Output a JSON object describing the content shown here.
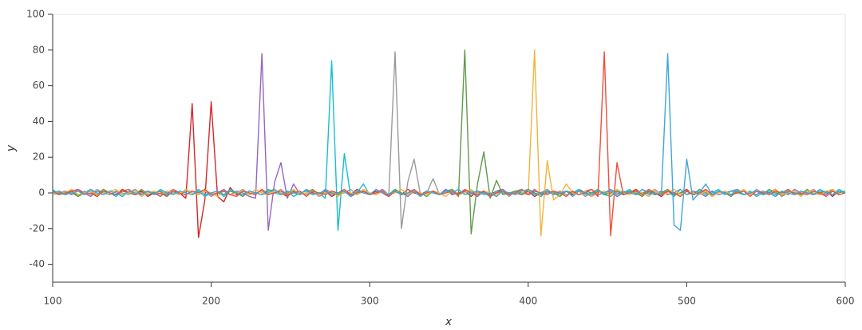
{
  "chart_data": {
    "type": "line",
    "xlabel": "x",
    "ylabel": "y",
    "xlim": [
      100,
      600
    ],
    "ylim": [
      -50,
      100
    ],
    "xticks": [
      100,
      200,
      300,
      400,
      500,
      600
    ],
    "yticks": [
      -40,
      -20,
      0,
      20,
      40,
      60,
      80,
      100
    ],
    "x": [
      100,
      104,
      108,
      112,
      116,
      120,
      124,
      128,
      132,
      136,
      140,
      144,
      148,
      152,
      156,
      160,
      164,
      168,
      172,
      176,
      180,
      184,
      188,
      192,
      196,
      200,
      204,
      208,
      212,
      216,
      220,
      224,
      228,
      232,
      236,
      240,
      244,
      248,
      252,
      256,
      260,
      264,
      268,
      272,
      276,
      280,
      284,
      288,
      292,
      296,
      300,
      304,
      308,
      312,
      316,
      320,
      324,
      328,
      332,
      336,
      340,
      344,
      348,
      352,
      356,
      360,
      364,
      368,
      372,
      376,
      380,
      384,
      388,
      392,
      396,
      400,
      404,
      408,
      412,
      416,
      420,
      424,
      428,
      432,
      436,
      440,
      444,
      448,
      452,
      456,
      460,
      464,
      468,
      472,
      476,
      480,
      484,
      488,
      492,
      496,
      500,
      504,
      508,
      512,
      516,
      520,
      524,
      528,
      532,
      536,
      540,
      544,
      548,
      552,
      556,
      560,
      564,
      568,
      572,
      576,
      580,
      584,
      588,
      592,
      596,
      600
    ],
    "series": [
      {
        "color": "#d62728",
        "values": [
          0,
          1,
          -1,
          2,
          -1,
          0,
          1,
          -2,
          1,
          0,
          -1,
          2,
          0,
          -1,
          1,
          -2,
          0,
          1,
          -1,
          2,
          0,
          -3,
          50,
          -25,
          -4,
          51,
          -2,
          -5,
          3,
          -1,
          1,
          0,
          -1,
          2,
          -1,
          1,
          0,
          -2,
          1,
          -1,
          2,
          0,
          -1,
          1,
          -2,
          0,
          1,
          -1,
          2,
          0,
          -1,
          1,
          0,
          -2,
          1,
          -1,
          2,
          0,
          -1,
          1,
          0,
          -1,
          2,
          -1,
          0,
          1,
          -2,
          1,
          0,
          -1,
          1,
          2,
          -1,
          0,
          -1,
          1,
          -2,
          0,
          2,
          -1,
          0,
          1,
          -1,
          2,
          0,
          -2,
          1,
          -1,
          0,
          1,
          -1,
          0,
          2,
          -1,
          1,
          0,
          -2,
          1,
          -1,
          0,
          2,
          -1,
          0,
          1,
          -2,
          1,
          0,
          -1,
          2,
          -1,
          0,
          1,
          -1,
          0,
          2,
          -2,
          1,
          0,
          -1,
          1,
          0,
          -1,
          1,
          -2,
          1,
          0
        ]
      },
      {
        "color": "#9467bd",
        "values": [
          -1,
          0,
          1,
          -1,
          2,
          0,
          -2,
          1,
          0,
          -1,
          1,
          -1,
          0,
          2,
          -1,
          1,
          0,
          -2,
          1,
          0,
          -1,
          2,
          0,
          -1,
          1,
          -1,
          0,
          2,
          -1,
          1,
          0,
          -2,
          -3,
          78,
          -21,
          6,
          17,
          -3,
          5,
          -1,
          0,
          1,
          -1,
          2,
          0,
          -1,
          1,
          -2,
          0,
          1,
          -1,
          0,
          2,
          -1,
          1,
          0,
          -2,
          1,
          -1,
          0,
          1,
          -1,
          2,
          0,
          -1,
          1,
          0,
          -2,
          1,
          -1,
          0,
          2,
          -1,
          1,
          0,
          -1,
          2,
          -1,
          0,
          1,
          -2,
          1,
          0,
          -1,
          1,
          2,
          -1,
          0,
          1,
          -2,
          0,
          1,
          -1,
          2,
          0,
          -1,
          1,
          -1,
          0,
          2,
          -1,
          1,
          0,
          -2,
          1,
          -1,
          0,
          1,
          2,
          -1,
          0,
          -1,
          1,
          0,
          -2,
          1,
          -1,
          2,
          0,
          -1,
          1,
          0,
          -1,
          2,
          -1,
          0
        ]
      },
      {
        "color": "#17becf",
        "values": [
          2,
          -1,
          0,
          1,
          -1,
          0,
          2,
          -1,
          1,
          0,
          -2,
          1,
          0,
          -1,
          2,
          -1,
          0,
          1,
          -1,
          0,
          1,
          0,
          -1,
          2,
          -1,
          0,
          1,
          -2,
          1,
          0,
          -1,
          1,
          0,
          -1,
          2,
          0,
          -1,
          1,
          -2,
          0,
          1,
          -1,
          0,
          -3,
          74,
          -21,
          22,
          -2,
          0,
          5,
          -1,
          0,
          1,
          -1,
          2,
          -1,
          0,
          1,
          -2,
          1,
          0,
          -1,
          1,
          2,
          -1,
          0,
          1,
          -1,
          0,
          -2,
          1,
          0,
          -1,
          1,
          2,
          -1,
          0,
          -2,
          1,
          0,
          -1,
          1,
          0,
          2,
          -1,
          0,
          1,
          -1,
          -2,
          1,
          0,
          2,
          -1,
          0,
          1,
          -1,
          0,
          1,
          -2,
          2,
          -1,
          0,
          1,
          -1,
          0,
          2,
          -1,
          1,
          0,
          -1,
          1,
          -2,
          0,
          1,
          -1,
          0,
          2,
          -1,
          1,
          0,
          -1,
          1,
          0,
          -1,
          2,
          0
        ]
      },
      {
        "color": "#9a9a9a",
        "values": [
          0,
          -1,
          1,
          0,
          -2,
          1,
          -1,
          2,
          0,
          -1,
          1,
          0,
          -1,
          2,
          -1,
          0,
          1,
          -1,
          0,
          2,
          -1,
          1,
          0,
          -1,
          1,
          -2,
          0,
          1,
          -1,
          0,
          2,
          -1,
          0,
          1,
          -1,
          0,
          2,
          -1,
          1,
          0,
          -1,
          1,
          -2,
          0,
          1,
          -1,
          0,
          2,
          -1,
          1,
          0,
          -1,
          1,
          -2,
          79,
          -20,
          6,
          19,
          -1,
          0,
          8,
          -1,
          1,
          0,
          -1,
          2,
          -1,
          0,
          1,
          -1,
          0,
          1,
          -2,
          1,
          0,
          -1,
          1,
          0,
          2,
          -1,
          1,
          -1,
          0,
          1,
          -2,
          0,
          1,
          -1,
          2,
          0,
          -1,
          0,
          1,
          -1,
          0,
          2,
          -1,
          1,
          0,
          -2,
          1,
          0,
          -1,
          2,
          -1,
          0,
          1,
          -1,
          0,
          1,
          -1,
          2,
          0,
          -1,
          1,
          -2,
          0,
          1,
          -1,
          0,
          2,
          -1,
          0,
          1,
          -1,
          0
        ]
      },
      {
        "color": "#5d9b48",
        "values": [
          1,
          0,
          -1,
          1,
          -2,
          0,
          1,
          -1,
          2,
          0,
          -1,
          1,
          0,
          -1,
          2,
          -1,
          0,
          1,
          -2,
          1,
          0,
          -1,
          1,
          0,
          2,
          -1,
          0,
          -1,
          1,
          0,
          -2,
          1,
          0,
          -1,
          1,
          2,
          -1,
          0,
          1,
          -1,
          0,
          2,
          -1,
          1,
          0,
          -1,
          1,
          -2,
          0,
          1,
          -1,
          0,
          1,
          -1,
          2,
          0,
          -1,
          1,
          0,
          -2,
          1,
          -1,
          0,
          2,
          -2,
          80,
          -23,
          5,
          23,
          -3,
          7,
          -1,
          0,
          1,
          -1,
          2,
          0,
          -1,
          1,
          0,
          -2,
          1,
          0,
          -1,
          1,
          0,
          2,
          -1,
          0,
          1,
          -1,
          1,
          0,
          -2,
          1,
          -1,
          0,
          2,
          -1,
          0,
          1,
          -1,
          2,
          0,
          -1,
          1,
          0,
          -2,
          1,
          -1,
          0,
          1,
          -1,
          2,
          0,
          -1,
          1,
          0,
          -1,
          2,
          -1,
          0,
          1,
          -1,
          0,
          1
        ]
      },
      {
        "color": "#f0b43c",
        "values": [
          -1,
          1,
          0,
          2,
          -1,
          0,
          1,
          -1,
          0,
          1,
          2,
          -1,
          0,
          1,
          -2,
          0,
          1,
          -1,
          1,
          0,
          -1,
          2,
          0,
          -1,
          1,
          0,
          -2,
          1,
          -1,
          0,
          1,
          -1,
          2,
          0,
          -1,
          1,
          0,
          -1,
          2,
          -1,
          0,
          1,
          -1,
          0,
          1,
          -2,
          1,
          0,
          -1,
          2,
          0,
          -1,
          1,
          -1,
          0,
          2,
          -1,
          1,
          0,
          -1,
          1,
          0,
          -2,
          1,
          -1,
          0,
          2,
          -1,
          1,
          0,
          -1,
          1,
          0,
          -1,
          2,
          -1,
          80,
          -24,
          18,
          -4,
          -1,
          5,
          0,
          -1,
          1,
          -2,
          0,
          1,
          -1,
          2,
          0,
          -1,
          1,
          0,
          -2,
          1,
          -1,
          0,
          2,
          -1,
          1,
          0,
          -1,
          1,
          -2,
          0,
          1,
          -1,
          0,
          2,
          -1,
          1,
          0,
          -1,
          2,
          -1,
          0,
          1,
          -2,
          1,
          0,
          -1,
          1,
          2,
          -1,
          0
        ]
      },
      {
        "color": "#f04e3a",
        "values": [
          1,
          -1,
          0,
          1,
          2,
          -1,
          0,
          -2,
          1,
          0,
          -1,
          1,
          2,
          -1,
          0,
          1,
          -1,
          0,
          -2,
          1,
          0,
          -1,
          1,
          0,
          2,
          -1,
          0,
          1,
          -1,
          -2,
          1,
          0,
          -1,
          2,
          -1,
          0,
          1,
          -1,
          0,
          1,
          -2,
          1,
          0,
          -1,
          1,
          0,
          2,
          -1,
          0,
          1,
          -1,
          0,
          1,
          -2,
          1,
          -1,
          0,
          2,
          -1,
          0,
          1,
          -1,
          0,
          1,
          -1,
          2,
          0,
          -1,
          1,
          -2,
          0,
          1,
          -1,
          0,
          2,
          -1,
          1,
          0,
          -1,
          1,
          0,
          -2,
          1,
          -1,
          0,
          2,
          -2,
          79,
          -24,
          17,
          -1,
          0,
          1,
          -1,
          2,
          0,
          -1,
          1,
          0,
          -2,
          1,
          -1,
          0,
          2,
          -1,
          1,
          0,
          -1,
          0,
          1,
          -2,
          1,
          0,
          -1,
          1,
          0,
          2,
          -1,
          0,
          -1,
          1,
          0,
          -2,
          1,
          -1,
          0
        ]
      },
      {
        "color": "#3ea6db",
        "values": [
          0,
          1,
          -1,
          0,
          1,
          -1,
          2,
          0,
          -1,
          1,
          0,
          -2,
          1,
          0,
          -1,
          1,
          -1,
          2,
          0,
          -1,
          1,
          0,
          -1,
          1,
          -2,
          0,
          1,
          -1,
          2,
          0,
          -1,
          1,
          0,
          -1,
          0,
          2,
          -1,
          1,
          0,
          -1,
          2,
          -1,
          0,
          1,
          -1,
          0,
          1,
          -2,
          1,
          0,
          -1,
          2,
          0,
          -1,
          1,
          -1,
          0,
          1,
          -2,
          1,
          0,
          -1,
          1,
          0,
          2,
          -1,
          0,
          1,
          -1,
          0,
          -2,
          1,
          0,
          -1,
          1,
          2,
          -1,
          0,
          1,
          -1,
          0,
          1,
          -2,
          1,
          0,
          -1,
          1,
          0,
          2,
          -1,
          1,
          0,
          -1,
          2,
          -1,
          0,
          -1,
          78,
          -18,
          -21,
          19,
          -4,
          0,
          5,
          -1,
          1,
          0,
          -1,
          2,
          -1,
          0,
          1,
          -1,
          0,
          -2,
          1,
          0,
          -1,
          1,
          0,
          -1,
          2,
          0,
          -1,
          1,
          0
        ]
      }
    ]
  }
}
